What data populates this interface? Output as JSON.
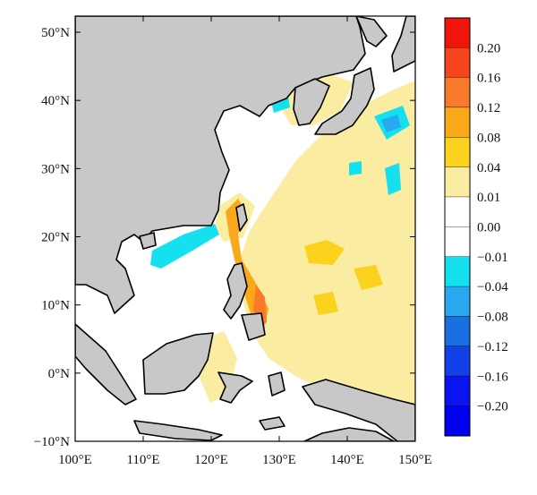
{
  "map": {
    "x_ticks": [
      "100°E",
      "110°E",
      "120°E",
      "130°E",
      "140°E",
      "150°E"
    ],
    "y_ticks": [
      "50°N",
      "40°N",
      "30°N",
      "20°N",
      "10°N",
      "0°N",
      "−10°N"
    ],
    "land_color": "#c8c8c8",
    "coast_color": "#000000"
  },
  "colorbar": {
    "levels": [
      {
        "label": "0.20",
        "color": "#f0140a"
      },
      {
        "label": "0.16",
        "color": "#f5461e"
      },
      {
        "label": "0.12",
        "color": "#f87a2a"
      },
      {
        "label": "0.08",
        "color": "#f9a81a"
      },
      {
        "label": "0.04",
        "color": "#fbd21e"
      },
      {
        "label": "0.01",
        "color": "#faeca0"
      },
      {
        "label": "0.00",
        "color": "#ffffff"
      },
      {
        "label": "−0.01",
        "color": "#ffffff"
      },
      {
        "label": "−0.04",
        "color": "#14e0f0"
      },
      {
        "label": "−0.08",
        "color": "#28a8ee"
      },
      {
        "label": "−0.12",
        "color": "#1a70e0"
      },
      {
        "label": "−0.16",
        "color": "#1240e6"
      },
      {
        "label": "−0.20",
        "color": "#0a14f0"
      }
    ],
    "bottom_color": "#0000ee"
  }
}
